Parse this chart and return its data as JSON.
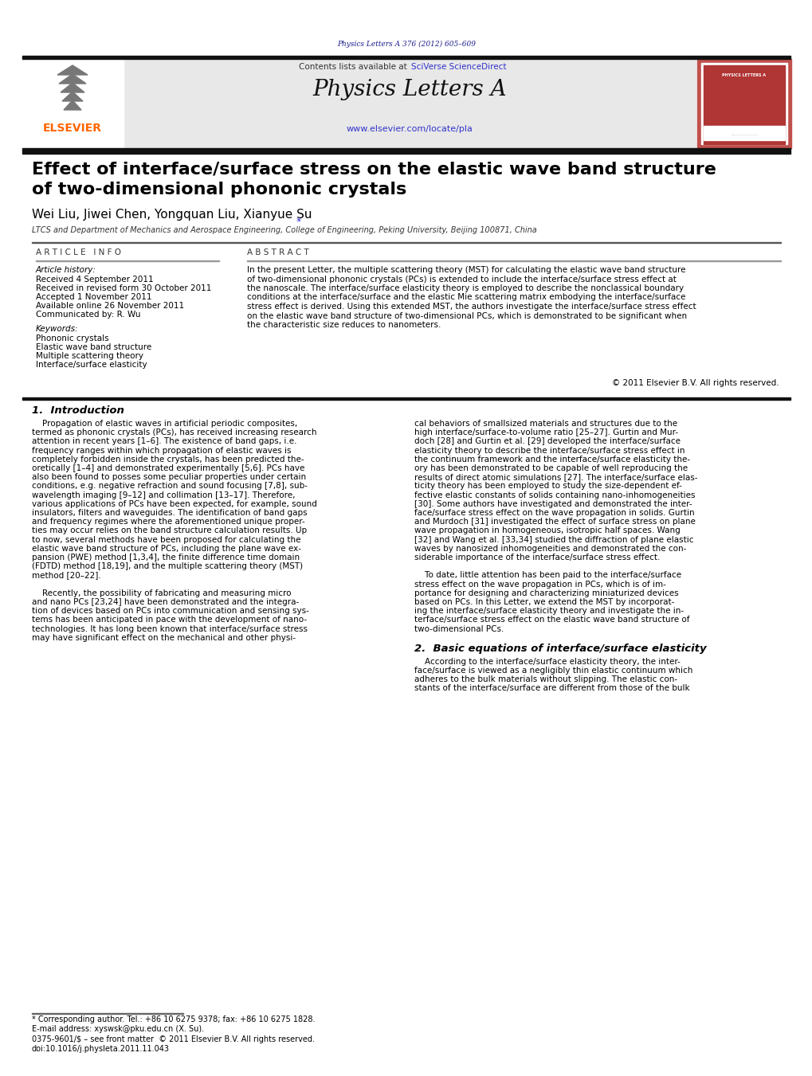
{
  "bg_color": "#ffffff",
  "header_bar_color": "#1a1a1a",
  "journal_bg": "#e8e8e8",
  "journal_title": "Physics Letters A",
  "journal_url": "www.elsevier.com/locate/pla",
  "contents_text": "Contents lists available at ",
  "sciverse_text": "SciVerse ScienceDirect",
  "page_ref": "Physics Letters A 376 (2012) 605–609",
  "paper_title_line1": "Effect of interface/surface stress on the elastic wave band structure",
  "paper_title_line2": "of two-dimensional phononic crystals",
  "authors": "Wei Liu, Jiwei Chen, Yongquan Liu, Xianyue Su",
  "authors_star": "*",
  "affiliation": "LTCS and Department of Mechanics and Aerospace Engineering, College of Engineering, Peking University, Beijing 100871, China",
  "article_info_label": "A R T I C L E   I N F O",
  "abstract_label": "A B S T R A C T",
  "article_history_label": "Article history:",
  "received1": "Received 4 September 2011",
  "received2": "Received in revised form 30 October 2011",
  "accepted": "Accepted 1 November 2011",
  "available": "Available online 26 November 2011",
  "communicated": "Communicated by: R. Wu",
  "keywords_label": "Keywords:",
  "keyword1": "Phononic crystals",
  "keyword2": "Elastic wave band structure",
  "keyword3": "Multiple scattering theory",
  "keyword4": "Interface/surface elasticity",
  "copyright_text": "© 2011 Elsevier B.V. All rights reserved.",
  "section1_title": "1.  Introduction",
  "section2_title": "2.  Basic equations of interface/surface elasticity",
  "footnote_star": "* Corresponding author. Tel.: +86 10 6275 9378; fax: +86 10 6275 1828.",
  "footnote_email": "E-mail address: xyswsk@pku.edu.cn (X. Su).",
  "footnote_issn": "0375-9601/$ – see front matter  © 2011 Elsevier B.V. All rights reserved.",
  "footnote_doi": "doi:10.1016/j.physleta.2011.11.043",
  "elsevier_color": "#ff6600",
  "link_color": "#3333cc",
  "dark_navy": "#1a1a8c",
  "title_color": "#000000",
  "text_color": "#000000",
  "abstract_lines": [
    "In the present Letter, the multiple scattering theory (MST) for calculating the elastic wave band structure",
    "of two-dimensional phononic crystals (PCs) is extended to include the interface/surface stress effect at",
    "the nanoscale. The interface/surface elasticity theory is employed to describe the nonclassical boundary",
    "conditions at the interface/surface and the elastic Mie scattering matrix embodying the interface/surface",
    "stress effect is derived. Using this extended MST, the authors investigate the interface/surface stress effect",
    "on the elastic wave band structure of two-dimensional PCs, which is demonstrated to be significant when",
    "the characteristic size reduces to nanometers."
  ],
  "col1_lines": [
    "    Propagation of elastic waves in artificial periodic composites,",
    "termed as phononic crystals (PCs), has received increasing research",
    "attention in recent years [1–6]. The existence of band gaps, i.e.",
    "frequency ranges within which propagation of elastic waves is",
    "completely forbidden inside the crystals, has been predicted the-",
    "oretically [1–4] and demonstrated experimentally [5,6]. PCs have",
    "also been found to posses some peculiar properties under certain",
    "conditions, e.g. negative refraction and sound focusing [7,8], sub-",
    "wavelength imaging [9–12] and collimation [13–17]. Therefore,",
    "various applications of PCs have been expected, for example, sound",
    "insulators, filters and waveguides. The identification of band gaps",
    "and frequency regimes where the aforementioned unique proper-",
    "ties may occur relies on the band structure calculation results. Up",
    "to now, several methods have been proposed for calculating the",
    "elastic wave band structure of PCs, including the plane wave ex-",
    "pansion (PWE) method [1,3,4], the finite difference time domain",
    "(FDTD) method [18,19], and the multiple scattering theory (MST)",
    "method [20–22].",
    "",
    "    Recently, the possibility of fabricating and measuring micro",
    "and nano PCs [23,24] have been demonstrated and the integra-",
    "tion of devices based on PCs into communication and sensing sys-",
    "tems has been anticipated in pace with the development of nano-",
    "technologies. It has long been known that interface/surface stress",
    "may have significant effect on the mechanical and other physi-"
  ],
  "col2_lines": [
    "cal behaviors of smallsized materials and structures due to the",
    "high interface/surface-to-volume ratio [25–27]. Gurtin and Mur-",
    "doch [28] and Gurtin et al. [29] developed the interface/surface",
    "elasticity theory to describe the interface/surface stress effect in",
    "the continuum framework and the interface/surface elasticity the-",
    "ory has been demonstrated to be capable of well reproducing the",
    "results of direct atomic simulations [27]. The interface/surface elas-",
    "ticity theory has been employed to study the size-dependent ef-",
    "fective elastic constants of solids containing nano-inhomogeneities",
    "[30]. Some authors have investigated and demonstrated the inter-",
    "face/surface stress effect on the wave propagation in solids. Gurtin",
    "and Murdoch [31] investigated the effect of surface stress on plane",
    "wave propagation in homogeneous, isotropic half spaces. Wang",
    "[32] and Wang et al. [33,34] studied the diffraction of plane elastic",
    "waves by nanosized inhomogeneities and demonstrated the con-",
    "siderable importance of the interface/surface stress effect.",
    "",
    "    To date, little attention has been paid to the interface/surface",
    "stress effect on the wave propagation in PCs, which is of im-",
    "portance for designing and characterizing miniaturized devices",
    "based on PCs. In this Letter, we extend the MST by incorporat-",
    "ing the interface/surface elasticity theory and investigate the in-",
    "terface/surface stress effect on the elastic wave band structure of",
    "two-dimensional PCs."
  ],
  "col2_s2_lines": [
    "    According to the interface/surface elasticity theory, the inter-",
    "face/surface is viewed as a negligibly thin elastic continuum which",
    "adheres to the bulk materials without slipping. The elastic con-",
    "stants of the interface/surface are different from those of the bulk"
  ]
}
